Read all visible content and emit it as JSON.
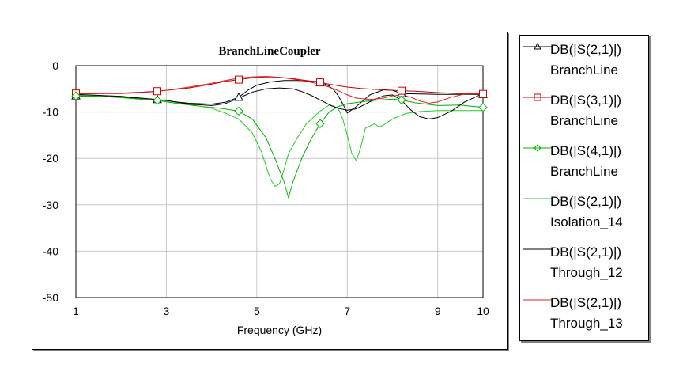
{
  "chart_data": {
    "type": "line",
    "title": "BranchLineCoupler",
    "xlabel": "Frequency (GHz)",
    "ylabel": "",
    "xlim": [
      1,
      10
    ],
    "ylim": [
      -50,
      0
    ],
    "x_ticks": [
      "1",
      "3",
      "5",
      "7",
      "9",
      "10"
    ],
    "y_ticks": [
      "0",
      "-10",
      "-20",
      "-30",
      "-40",
      "-50"
    ],
    "grid": true,
    "legend_position": "right-outside",
    "series": [
      {
        "name": "DB(|S(2,1)|)",
        "name2": "BranchLine",
        "color": "#000000",
        "marker": "triangle",
        "x": [
          1,
          1.5,
          2,
          2.5,
          2.8,
          3,
          3.5,
          4,
          4.3,
          4.6,
          4.8,
          5,
          5.3,
          5.6,
          5.9,
          6.1,
          6.3,
          6.4,
          6.5,
          6.6,
          6.7,
          6.8,
          6.9,
          7.0,
          7.2,
          7.5,
          7.8,
          8.0,
          8.2,
          8.6,
          9.0,
          9.4,
          9.8,
          10
        ],
        "y": [
          -6.5,
          -6.6,
          -6.8,
          -7.1,
          -7.3,
          -7.6,
          -8.1,
          -8.3,
          -7.9,
          -6.8,
          -5.3,
          -4.2,
          -3.5,
          -3.2,
          -3.2,
          -3.3,
          -3.4,
          -3.6,
          -3.9,
          -4.4,
          -5.2,
          -6.5,
          -8.2,
          -10.2,
          -8.8,
          -6.3,
          -5.2,
          -5.3,
          -6.0,
          -6.1,
          -6.2,
          -6.2,
          -6.2,
          -6.2
        ],
        "marker_x": [
          1,
          2.8,
          4.6,
          6.4,
          8.2,
          10
        ]
      },
      {
        "name": "DB(|S(3,1)|)",
        "name2": "BranchLine",
        "color": "#cc0000",
        "marker": "square",
        "x": [
          1,
          1.5,
          2,
          2.5,
          2.8,
          3,
          3.5,
          4,
          4.3,
          4.6,
          4.9,
          5.2,
          5.5,
          5.8,
          6.1,
          6.4,
          6.6,
          6.8,
          7.0,
          7.3,
          7.6,
          8.0,
          8.2,
          8.5,
          9.0,
          9.5,
          10
        ],
        "y": [
          -6.0,
          -6.0,
          -5.9,
          -5.7,
          -5.5,
          -5.3,
          -4.8,
          -4.0,
          -3.4,
          -3.0,
          -2.6,
          -2.4,
          -2.5,
          -2.8,
          -3.2,
          -3.6,
          -4.0,
          -4.3,
          -4.6,
          -4.9,
          -5.1,
          -5.3,
          -5.4,
          -5.5,
          -5.8,
          -6.0,
          -6.1
        ],
        "marker_x": [
          1,
          2.8,
          4.6,
          6.4,
          8.2,
          10
        ]
      },
      {
        "name": "DB(|S(4,1)|)",
        "name2": "BranchLine",
        "color": "#00b000",
        "marker": "diamond",
        "x": [
          1,
          1.5,
          2,
          2.5,
          2.8,
          3.0,
          3.3,
          3.6,
          3.9,
          4.2,
          4.6,
          4.9,
          5.2,
          5.4,
          5.6,
          5.7,
          5.8,
          6.0,
          6.2,
          6.4,
          6.6,
          6.8,
          7.0,
          7.3,
          7.6,
          8.0,
          8.2,
          8.5,
          9.0,
          9.5,
          10
        ],
        "y": [
          -6.5,
          -6.6,
          -6.9,
          -7.3,
          -7.5,
          -7.8,
          -8.2,
          -8.6,
          -8.9,
          -9.2,
          -9.8,
          -11.5,
          -15.5,
          -20.0,
          -25.0,
          -28.5,
          -25.0,
          -19.8,
          -15.8,
          -12.5,
          -10.0,
          -8.8,
          -8.2,
          -7.8,
          -7.5,
          -7.2,
          -7.4,
          -8.0,
          -8.6,
          -8.5,
          -9.0
        ],
        "marker_x": [
          1,
          2.8,
          4.6,
          6.4,
          8.2,
          10
        ]
      },
      {
        "name": "DB(|S(2,1)|)",
        "name2": "Isolation_14",
        "color": "#22cc22",
        "marker": "none",
        "x": [
          1,
          2,
          3,
          3.5,
          4,
          4.3,
          4.6,
          4.9,
          5.1,
          5.2,
          5.3,
          5.4,
          5.5,
          5.6,
          5.7,
          5.9,
          6.1,
          6.4,
          6.6,
          6.8,
          6.9,
          7.0,
          7.1,
          7.2,
          7.3,
          7.4,
          7.6,
          7.7,
          7.8,
          8.0,
          8.3,
          8.6,
          9.0,
          9.5,
          10
        ],
        "y": [
          -6.3,
          -6.6,
          -7.6,
          -8.3,
          -9.2,
          -10.2,
          -11.5,
          -14.5,
          -18.5,
          -21.5,
          -24.5,
          -26.0,
          -25.5,
          -22.5,
          -19.0,
          -15.5,
          -12.5,
          -9.8,
          -8.5,
          -9.2,
          -11.5,
          -15.0,
          -19.0,
          -20.5,
          -17.5,
          -13.5,
          -12.5,
          -13.2,
          -12.8,
          -11.5,
          -10.3,
          -9.9,
          -9.7,
          -9.7,
          -9.7
        ]
      },
      {
        "name": "DB(|S(2,1)|)",
        "name2": "Through_12",
        "color": "#000000",
        "marker": "none",
        "x": [
          1,
          2,
          3,
          3.5,
          4,
          4.3,
          4.6,
          4.9,
          5.2,
          5.5,
          5.8,
          6.0,
          6.2,
          6.4,
          6.6,
          6.8,
          7.0,
          7.2,
          7.5,
          7.8,
          8.0,
          8.2,
          8.4,
          8.6,
          8.8,
          9.0,
          9.3,
          9.6,
          10
        ],
        "y": [
          -6.2,
          -6.6,
          -7.5,
          -8.3,
          -8.6,
          -8.2,
          -7.0,
          -5.7,
          -5.0,
          -4.8,
          -5.0,
          -5.6,
          -6.4,
          -7.4,
          -8.4,
          -9.2,
          -9.6,
          -9.3,
          -7.8,
          -6.5,
          -6.3,
          -7.5,
          -9.5,
          -11.0,
          -11.5,
          -11.2,
          -9.8,
          -7.8,
          -6.0
        ]
      },
      {
        "name": "DB(|S(2,1)|)",
        "name2": "Through_13",
        "color": "#dd2222",
        "marker": "none",
        "x": [
          1,
          2,
          2.5,
          3,
          3.5,
          4,
          4.3,
          4.6,
          4.9,
          5.2,
          5.5,
          5.8,
          6.1,
          6.4,
          6.6,
          6.8,
          7.0,
          7.2,
          7.5,
          7.8,
          8.0,
          8.2,
          8.4,
          8.6,
          8.8,
          9.0,
          9.3,
          9.6,
          10
        ],
        "y": [
          -6.1,
          -6.0,
          -5.8,
          -5.3,
          -4.6,
          -3.8,
          -3.2,
          -2.7,
          -2.4,
          -2.3,
          -2.5,
          -2.9,
          -3.4,
          -4.0,
          -4.6,
          -5.4,
          -6.3,
          -7.0,
          -7.3,
          -7.0,
          -6.5,
          -6.3,
          -6.8,
          -7.6,
          -8.1,
          -7.8,
          -6.8,
          -6.1,
          -6.0
        ]
      }
    ]
  }
}
